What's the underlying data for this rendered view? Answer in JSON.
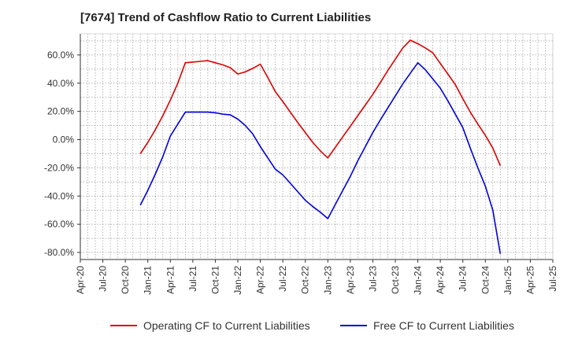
{
  "chart_data": {
    "type": "line",
    "title": "[7674]  Trend of Cashflow Ratio to Current Liabilities",
    "xlabel": "",
    "ylabel": "",
    "ylim": [
      -85,
      75
    ],
    "y_ticks": [
      "60.0%",
      "40.0%",
      "20.0%",
      "0.0%",
      "-20.0%",
      "-40.0%",
      "-60.0%",
      "-80.0%"
    ],
    "y_tick_values": [
      60,
      40,
      20,
      0,
      -20,
      -40,
      -60,
      -80
    ],
    "x_ticks": [
      "Apr-20",
      "Jul-20",
      "Oct-20",
      "Jan-21",
      "Apr-21",
      "Jul-21",
      "Oct-21",
      "Jan-22",
      "Apr-22",
      "Jul-22",
      "Oct-22",
      "Jan-23",
      "Apr-23",
      "Jul-23",
      "Oct-23",
      "Jan-24",
      "Apr-24",
      "Jul-24",
      "Oct-24",
      "Jan-25",
      "Apr-25",
      "Jul-25"
    ],
    "grid": true,
    "legend_position": "bottom",
    "series": [
      {
        "name": "Operating CF to Current Liabilities",
        "color": "#dd0000",
        "points": [
          [
            "Dec-20",
            -10
          ],
          [
            "Jan-21",
            -2
          ],
          [
            "Feb-21",
            7
          ],
          [
            "Mar-21",
            17
          ],
          [
            "Apr-21",
            28
          ],
          [
            "May-21",
            40
          ],
          [
            "Jun-21",
            54.5
          ],
          [
            "Jul-21",
            55
          ],
          [
            "Aug-21",
            55.5
          ],
          [
            "Sep-21",
            56
          ],
          [
            "Oct-21",
            54.5
          ],
          [
            "Nov-21",
            53
          ],
          [
            "Dec-21",
            51
          ],
          [
            "Jan-22",
            46.5
          ],
          [
            "Feb-22",
            48
          ],
          [
            "Mar-22",
            50.5
          ],
          [
            "Apr-22",
            53.5
          ],
          [
            "May-22",
            44
          ],
          [
            "Jun-22",
            34
          ],
          [
            "Jul-22",
            27
          ],
          [
            "Aug-22",
            19.5
          ],
          [
            "Sep-22",
            12
          ],
          [
            "Oct-22",
            5
          ],
          [
            "Nov-22",
            -2
          ],
          [
            "Dec-22",
            -8
          ],
          [
            "Jan-23",
            -13
          ],
          [
            "Feb-23",
            -5.5
          ],
          [
            "Mar-23",
            2
          ],
          [
            "Apr-23",
            9.5
          ],
          [
            "May-23",
            17
          ],
          [
            "Jun-23",
            24.5
          ],
          [
            "Jul-23",
            32
          ],
          [
            "Aug-23",
            40.5
          ],
          [
            "Sep-23",
            49
          ],
          [
            "Oct-23",
            57
          ],
          [
            "Nov-23",
            65
          ],
          [
            "Dec-23",
            70.5
          ],
          [
            "Jan-24",
            68
          ],
          [
            "Feb-24",
            65
          ],
          [
            "Mar-24",
            61.5
          ],
          [
            "Apr-24",
            54
          ],
          [
            "May-24",
            46.5
          ],
          [
            "Jun-24",
            39
          ],
          [
            "Jul-24",
            29
          ],
          [
            "Aug-24",
            19.5
          ],
          [
            "Sep-24",
            11
          ],
          [
            "Oct-24",
            3
          ],
          [
            "Nov-24",
            -6
          ],
          [
            "Dec-24",
            -18.5
          ]
        ]
      },
      {
        "name": "Free CF to Current Liabilities",
        "color": "#0000dd",
        "points": [
          [
            "Dec-20",
            -46.5
          ],
          [
            "Jan-21",
            -36
          ],
          [
            "Feb-21",
            -24.5
          ],
          [
            "Mar-21",
            -12
          ],
          [
            "Apr-21",
            2.5
          ],
          [
            "May-21",
            11
          ],
          [
            "Jun-21",
            19.5
          ],
          [
            "Jul-21",
            19.5
          ],
          [
            "Aug-21",
            19.5
          ],
          [
            "Sep-21",
            19.5
          ],
          [
            "Oct-21",
            19
          ],
          [
            "Nov-21",
            18
          ],
          [
            "Dec-21",
            17.5
          ],
          [
            "Jan-22",
            14.5
          ],
          [
            "Feb-22",
            10
          ],
          [
            "Mar-22",
            4
          ],
          [
            "Apr-22",
            -5
          ],
          [
            "May-22",
            -13
          ],
          [
            "Jun-22",
            -21
          ],
          [
            "Jul-22",
            -25
          ],
          [
            "Aug-22",
            -31
          ],
          [
            "Sep-22",
            -37
          ],
          [
            "Oct-22",
            -43
          ],
          [
            "Nov-22",
            -47.5
          ],
          [
            "Dec-22",
            -51.5
          ],
          [
            "Jan-23",
            -56
          ],
          [
            "Feb-23",
            -46
          ],
          [
            "Mar-23",
            -36
          ],
          [
            "Apr-23",
            -26
          ],
          [
            "May-23",
            -15
          ],
          [
            "Jun-23",
            -5
          ],
          [
            "Jul-23",
            5
          ],
          [
            "Aug-23",
            14
          ],
          [
            "Sep-23",
            22.5
          ],
          [
            "Oct-23",
            31
          ],
          [
            "Nov-23",
            39.5
          ],
          [
            "Dec-23",
            47
          ],
          [
            "Jan-24",
            54.5
          ],
          [
            "Feb-24",
            49.5
          ],
          [
            "Mar-24",
            43
          ],
          [
            "Apr-24",
            36.5
          ],
          [
            "May-24",
            27.5
          ],
          [
            "Jun-24",
            18
          ],
          [
            "Jul-24",
            8.5
          ],
          [
            "Aug-24",
            -6
          ],
          [
            "Sep-24",
            -20
          ],
          [
            "Oct-24",
            -33
          ],
          [
            "Nov-24",
            -50
          ],
          [
            "Dec-24",
            -81
          ]
        ]
      }
    ]
  }
}
